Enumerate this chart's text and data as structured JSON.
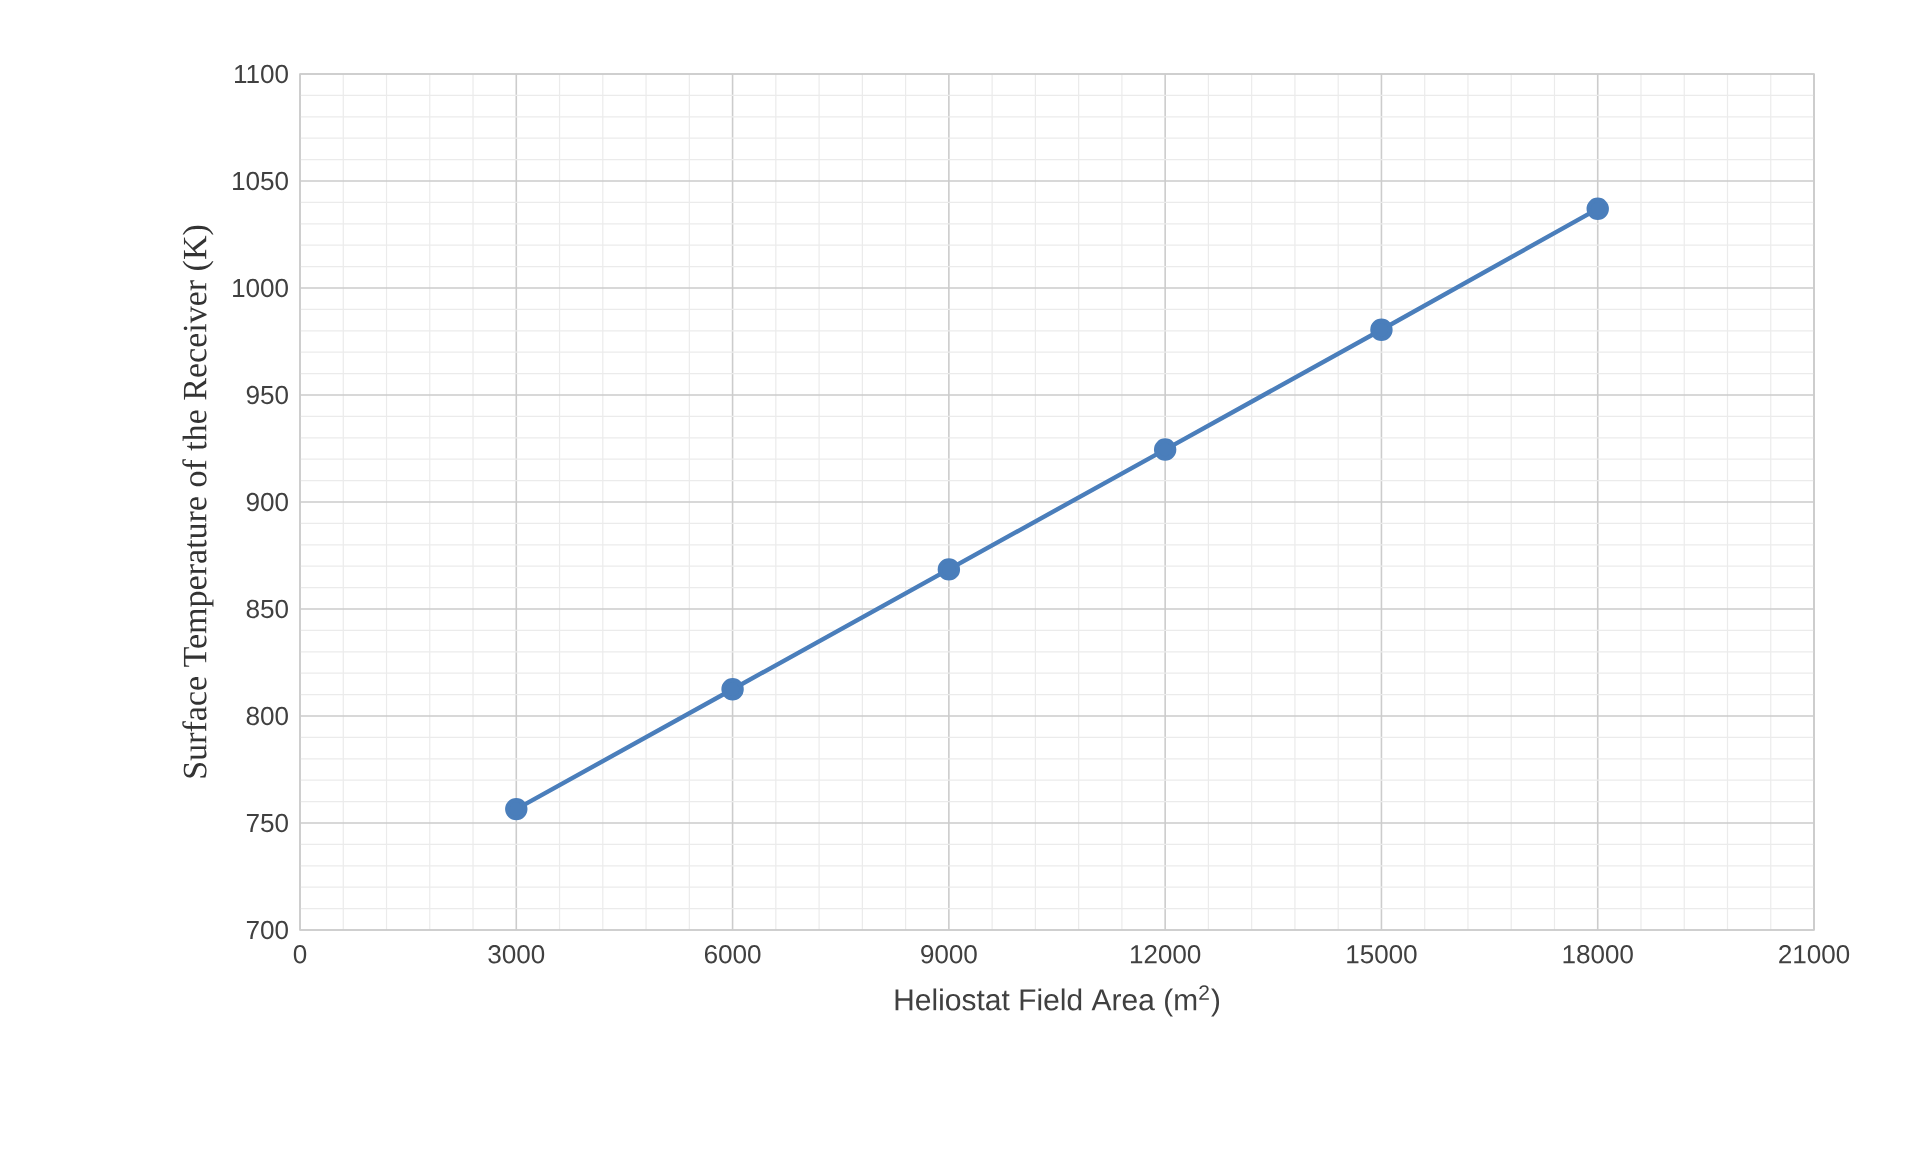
{
  "chart_data": {
    "type": "line",
    "xlabel": "Heliostat Field Area (m$^{2}$)",
    "ylabel": "Surface Temperature of the Receiver (K)",
    "x": [
      3000,
      6000,
      9000,
      12000,
      15000,
      18000
    ],
    "series": [
      {
        "color": "#4a7ebb",
        "values": [
          756.5,
          812.5,
          868.5,
          924.5,
          980.5,
          1037
        ]
      }
    ],
    "xlim": [
      0,
      21000
    ],
    "xticks": [
      0,
      3000,
      6000,
      9000,
      12000,
      15000,
      18000,
      21000
    ],
    "ylim": [
      700,
      1100
    ],
    "yticks": [
      700,
      750,
      800,
      850,
      900,
      950,
      1000,
      1050,
      1100
    ],
    "grid": true,
    "marker": "circle",
    "line_style": "solid"
  }
}
